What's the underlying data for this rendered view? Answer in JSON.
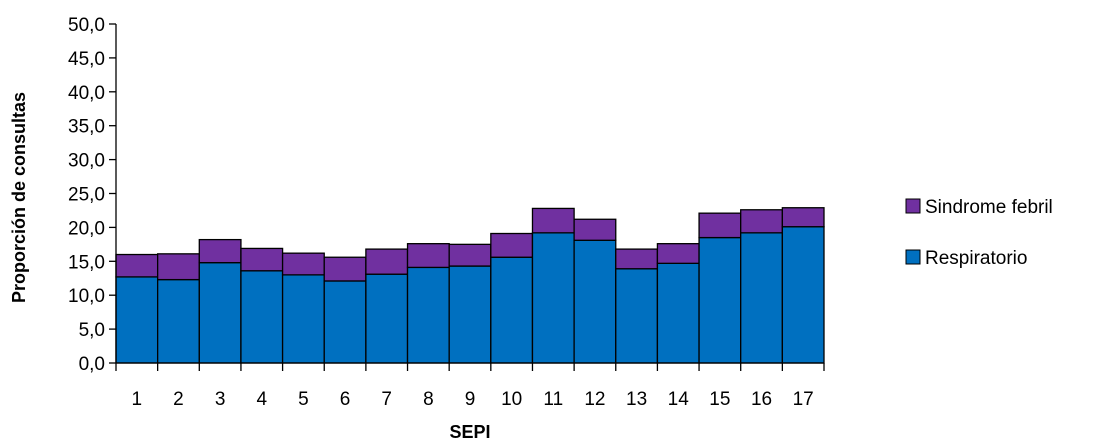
{
  "chart_data": {
    "type": "bar",
    "stacked": true,
    "title": "",
    "xlabel": "SEPI",
    "ylabel": "Proporción de consultas",
    "ylim": [
      0,
      50
    ],
    "yticks": [
      "0,0",
      "5,0",
      "10,0",
      "15,0",
      "20,0",
      "25,0",
      "30,0",
      "35,0",
      "40,0",
      "45,0",
      "50,0"
    ],
    "categories": [
      "1",
      "2",
      "3",
      "4",
      "5",
      "6",
      "7",
      "8",
      "9",
      "10",
      "11",
      "12",
      "13",
      "14",
      "15",
      "16",
      "17"
    ],
    "series": [
      {
        "name": "Respiratorio",
        "color": "#0070C0",
        "values": [
          12.7,
          12.3,
          14.8,
          13.6,
          13.0,
          12.1,
          13.1,
          14.1,
          14.3,
          15.6,
          19.2,
          18.1,
          13.9,
          14.7,
          18.5,
          19.2,
          20.1
        ]
      },
      {
        "name": "Sindrome febril",
        "color": "#7030A0",
        "values": [
          3.3,
          3.8,
          3.4,
          3.3,
          3.2,
          3.5,
          3.7,
          3.5,
          3.2,
          3.5,
          3.6,
          3.1,
          2.9,
          2.9,
          3.6,
          3.4,
          2.8
        ]
      }
    ],
    "legend": {
      "position": "right",
      "order": [
        "Sindrome febril",
        "Respiratorio"
      ]
    },
    "grid": false
  }
}
